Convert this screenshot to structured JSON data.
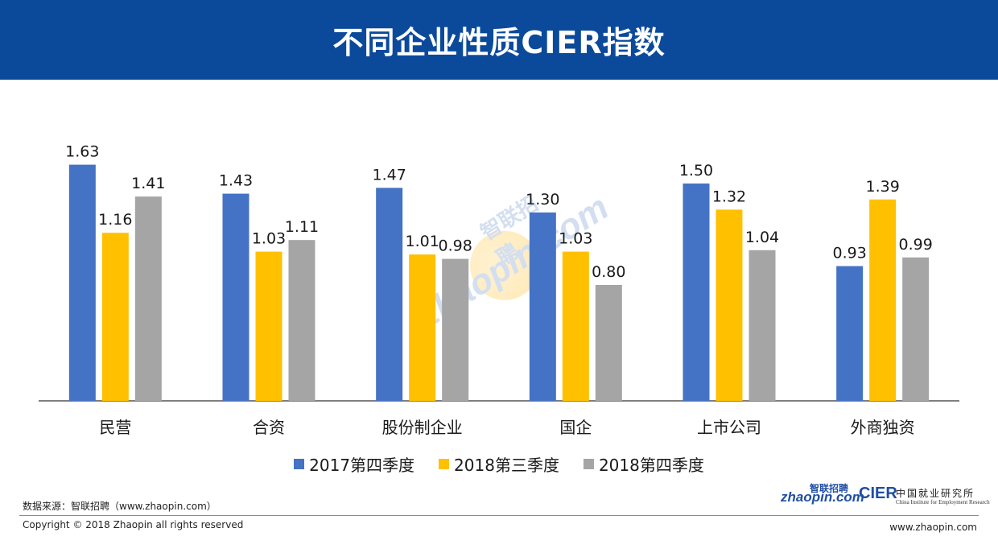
{
  "header": {
    "title": "不同企业性质CIER指数"
  },
  "colors": {
    "header_bg": "#0b4a9b",
    "axis": "#333333"
  },
  "chart_data": {
    "type": "bar",
    "title": "不同企业性质CIER指数",
    "categories": [
      "民营",
      "合资",
      "股份制企业",
      "国企",
      "上市公司",
      "外商独资"
    ],
    "series": [
      {
        "name": "2017第四季度",
        "color": "#4472c4",
        "values": [
          1.63,
          1.43,
          1.47,
          1.3,
          1.5,
          0.93
        ]
      },
      {
        "name": "2018第三季度",
        "color": "#ffc000",
        "values": [
          1.16,
          1.03,
          1.01,
          1.03,
          1.32,
          1.39
        ]
      },
      {
        "name": "2018第四季度",
        "color": "#a5a5a5",
        "values": [
          1.41,
          1.11,
          0.98,
          0.8,
          1.04,
          0.99
        ]
      }
    ],
    "ylim": [
      0,
      1.8
    ],
    "grid": false,
    "legend": "bottom-center",
    "data_labels": true
  },
  "watermark": {
    "text_latin": "zhaopin.com",
    "text_cn": "智联招聘"
  },
  "footer": {
    "source": "数据来源：智联招聘（www.zhaopin.com）",
    "copyright": "Copyright © 2018 Zhaopin all rights reserved",
    "site": "www.zhaopin.com"
  },
  "logos": {
    "zhaopin_cn": "智联招聘",
    "zhaopin_main": "zhaopin.com",
    "cier_main": "CIER",
    "cier_cn": "中国就业研究所",
    "cier_en": "China Institute for Employment Research"
  }
}
